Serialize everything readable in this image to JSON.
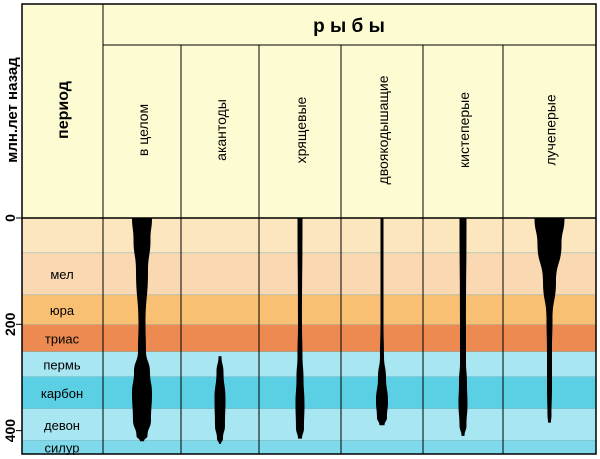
{
  "y_axis_label": "млн.лет назад",
  "y_ticks": [
    {
      "value": 0,
      "label": "0"
    },
    {
      "value": 200,
      "label": "200"
    },
    {
      "value": 400,
      "label": "400"
    }
  ],
  "period_header": "период",
  "group_header": "р ы б ы",
  "columns": [
    {
      "key": "all",
      "label": "в целом"
    },
    {
      "key": "acanthodes",
      "label": "акантоды"
    },
    {
      "key": "cartilaginous",
      "label": "хрящевые"
    },
    {
      "key": "lungfish",
      "label": "двоякодышащие"
    },
    {
      "key": "lobefin",
      "label": "кистеперые"
    },
    {
      "key": "rayfin",
      "label": "лучеперые"
    }
  ],
  "periods": [
    {
      "key": "cenozoic",
      "label": "",
      "from": 0,
      "to": 66,
      "color": "#fce6be"
    },
    {
      "key": "cretaceous",
      "label": "мел",
      "from": 66,
      "to": 145,
      "color": "#fad8b2"
    },
    {
      "key": "jurassic",
      "label": "юра",
      "from": 145,
      "to": 201,
      "color": "#f9bf73"
    },
    {
      "key": "triassic",
      "label": "триас",
      "from": 201,
      "to": 252,
      "color": "#ed8a52"
    },
    {
      "key": "permian",
      "label": "пермь",
      "from": 252,
      "to": 299,
      "color": "#a8e6f2"
    },
    {
      "key": "carboniferous",
      "label": "карбон",
      "from": 299,
      "to": 359,
      "color": "#5bcfe3"
    },
    {
      "key": "devonian",
      "label": "девон",
      "from": 359,
      "to": 419,
      "color": "#a8e6f2"
    },
    {
      "key": "silurian",
      "label": "силур",
      "from": 419,
      "to": 444,
      "color": "#7edaea"
    }
  ],
  "colors": {
    "header_bg": "#fdfbd2",
    "grid": "#000000",
    "lineage": "#000000"
  },
  "chart_data": {
    "type": "spindle-diagram",
    "title": "рыбы",
    "ylabel": "млн.лет назад",
    "ylim": [
      0,
      444
    ],
    "lineages": [
      {
        "name": "в целом",
        "points": [
          [
            0,
            20
          ],
          [
            40,
            17
          ],
          [
            100,
            12
          ],
          [
            200,
            7
          ],
          [
            250,
            8
          ],
          [
            290,
            16
          ],
          [
            330,
            20
          ],
          [
            380,
            18
          ],
          [
            410,
            11
          ],
          [
            420,
            4
          ]
        ]
      },
      {
        "name": "акантоды",
        "points": [
          [
            260,
            3
          ],
          [
            290,
            7
          ],
          [
            340,
            11
          ],
          [
            390,
            10
          ],
          [
            415,
            6
          ],
          [
            425,
            2
          ]
        ]
      },
      {
        "name": "хрящевые",
        "points": [
          [
            0,
            5
          ],
          [
            200,
            4
          ],
          [
            260,
            5
          ],
          [
            300,
            7
          ],
          [
            350,
            9
          ],
          [
            395,
            8
          ],
          [
            415,
            4
          ]
        ]
      },
      {
        "name": "двоякодышащие",
        "points": [
          [
            0,
            3
          ],
          [
            200,
            3
          ],
          [
            260,
            4
          ],
          [
            300,
            8
          ],
          [
            345,
            12
          ],
          [
            375,
            10
          ],
          [
            390,
            5
          ]
        ]
      },
      {
        "name": "кистеперые",
        "points": [
          [
            0,
            7
          ],
          [
            200,
            6
          ],
          [
            270,
            6
          ],
          [
            310,
            8
          ],
          [
            350,
            9
          ],
          [
            390,
            7
          ],
          [
            410,
            3
          ]
        ]
      },
      {
        "name": "лучеперые",
        "points": [
          [
            0,
            30
          ],
          [
            50,
            24
          ],
          [
            120,
            13
          ],
          [
            190,
            6
          ],
          [
            250,
            5
          ],
          [
            320,
            5
          ],
          [
            370,
            4
          ],
          [
            385,
            3
          ]
        ]
      }
    ]
  }
}
